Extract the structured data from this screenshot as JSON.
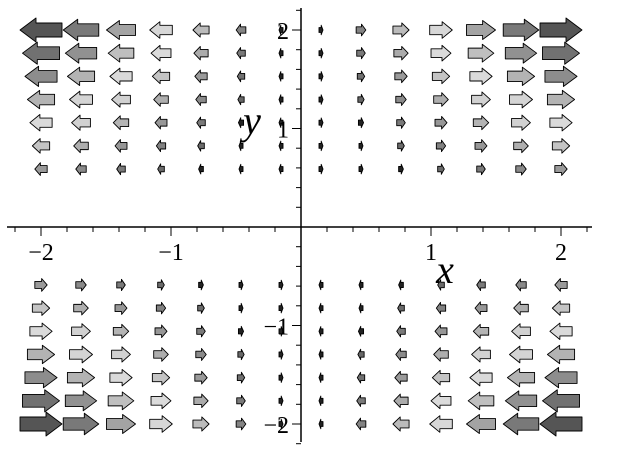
{
  "chart_data": {
    "type": "vector-field",
    "xlabel": "x",
    "ylabel": "y",
    "xlim": [
      -2.2,
      2.2
    ],
    "ylim": [
      -2.2,
      2.2
    ],
    "x_ticks": [
      -2,
      -1,
      1,
      2
    ],
    "x_tick_labels": [
      "−2",
      "−1",
      "1",
      "2"
    ],
    "y_ticks": [
      -2,
      -1,
      1,
      2
    ],
    "y_tick_labels": [
      "−2",
      "−1",
      "1",
      "2"
    ],
    "grid": false,
    "field": {
      "u": "x*y",
      "v": "0",
      "description": "F(x, y) = <x·y, 0>"
    },
    "sample_x": [
      -2.0,
      -1.6923,
      -1.3846,
      -1.0769,
      -0.7692,
      -0.4615,
      -0.1538,
      0.1538,
      0.4615,
      0.7692,
      1.0769,
      1.3846,
      1.6923,
      2.0
    ],
    "sample_y": [
      2.0,
      1.7647,
      1.5294,
      1.2941,
      1.0588,
      0.8235,
      0.5882,
      -0.5882,
      -0.8235,
      -1.0588,
      -1.2941,
      -1.5294,
      -1.7647,
      -2.0
    ],
    "colors": {
      "dark": "#555555",
      "mid": "#909090",
      "light": "#e4e4e4",
      "axis": "#000000"
    }
  }
}
